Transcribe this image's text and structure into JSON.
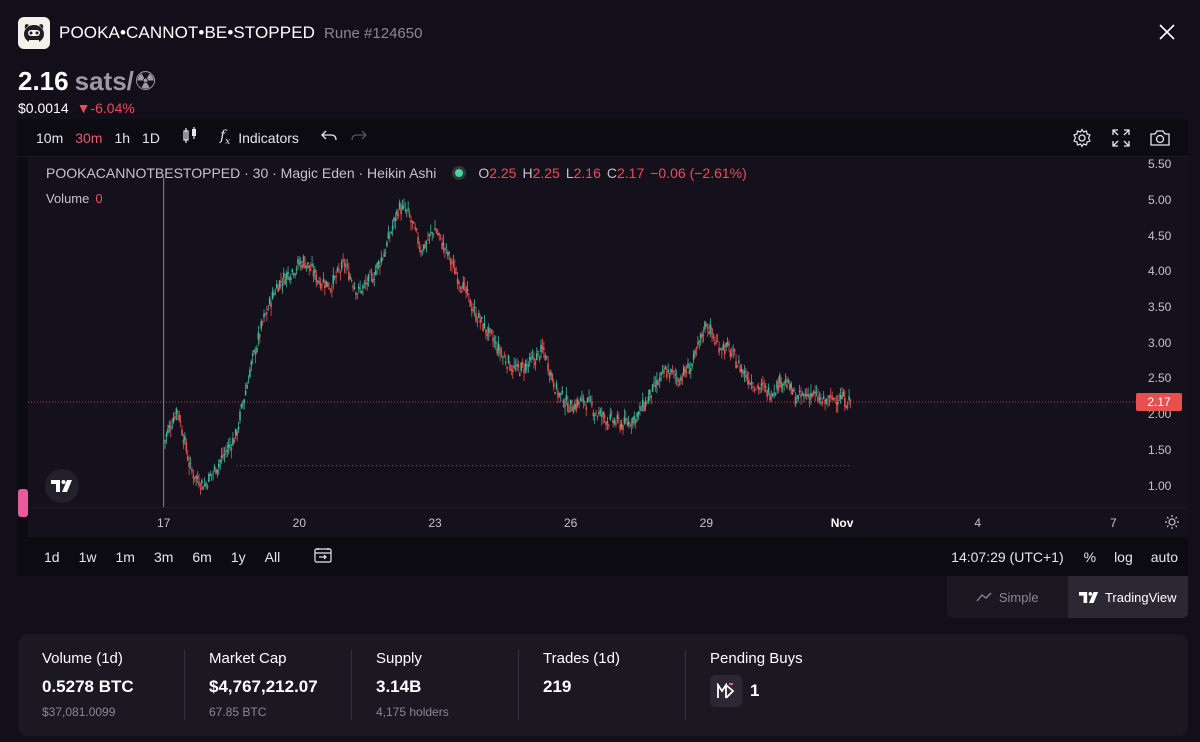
{
  "header": {
    "title": "POOKA•CANNOT•BE•STOPPED",
    "rune_id": "Rune #124650"
  },
  "price": {
    "value": "2.16",
    "unit": "sats/☢",
    "usd": "$0.0014",
    "change": "▼-6.04%"
  },
  "toolbar": {
    "intervals": [
      "10m",
      "30m",
      "1h",
      "1D"
    ],
    "active_interval": "30m",
    "indicators_label": "Indicators"
  },
  "legend": {
    "symbol": "POOKACANNOTBESTOPPED · 30 · Magic Eden · Heikin Ashi",
    "o_label": "O",
    "o_value": "2.25",
    "h_label": "H",
    "h_value": "2.25",
    "l_label": "L",
    "l_value": "2.16",
    "c_label": "C",
    "c_value": "2.17",
    "change": "−0.06 (−2.61%)",
    "volume_label": "Volume",
    "volume_value": "0"
  },
  "chart_data": {
    "type": "candlestick",
    "title": "POOKACANNOTBESTOPPED · 30 · Magic Eden · Heikin Ashi",
    "ylim": [
      0.7,
      5.6
    ],
    "y_ticks": [
      "5.50",
      "5.00",
      "4.50",
      "4.00",
      "3.50",
      "3.00",
      "2.50",
      "2.00",
      "1.50",
      "1.00"
    ],
    "x_ticks": [
      "17",
      "20",
      "23",
      "26",
      "29",
      "Nov",
      "4",
      "7"
    ],
    "current_price": "2.17",
    "support_line": 1.28,
    "x": [
      17.0,
      17.3,
      17.6,
      17.9,
      18.3,
      18.6,
      18.9,
      19.2,
      19.5,
      19.8,
      20.1,
      20.4,
      20.7,
      21.0,
      21.3,
      21.6,
      21.9,
      22.2,
      22.4,
      22.7,
      23.0,
      23.3,
      23.6,
      23.9,
      24.2,
      24.5,
      24.8,
      25.1,
      25.4,
      25.7,
      26.0,
      26.3,
      26.6,
      26.9,
      27.2,
      27.5,
      27.8,
      28.1,
      28.4,
      28.7,
      29.0,
      29.2,
      29.5,
      29.8,
      30.1,
      30.4,
      30.7,
      31.0,
      31.3,
      31.6,
      31.9,
      32.2
    ],
    "values": [
      1.6,
      2.1,
      1.2,
      1.0,
      1.4,
      1.7,
      2.6,
      3.3,
      3.8,
      4.0,
      4.15,
      3.9,
      3.8,
      4.1,
      3.7,
      3.9,
      4.3,
      4.9,
      4.8,
      4.3,
      4.6,
      4.2,
      3.8,
      3.4,
      3.1,
      2.8,
      2.6,
      2.7,
      2.9,
      2.3,
      2.1,
      2.2,
      2.0,
      1.9,
      1.85,
      2.0,
      2.3,
      2.6,
      2.5,
      2.7,
      3.3,
      3.0,
      2.9,
      2.6,
      2.4,
      2.3,
      2.5,
      2.2,
      2.3,
      2.15,
      2.25,
      2.17
    ]
  },
  "time_axis": {
    "labels": [
      "17",
      "20",
      "23",
      "26",
      "29",
      "Nov",
      "4",
      "7"
    ]
  },
  "range_bar": {
    "ranges": [
      "1d",
      "1w",
      "1m",
      "3m",
      "6m",
      "1y",
      "All"
    ],
    "time": "14:07:29 (UTC+1)",
    "percent": "%",
    "log": "log",
    "auto": "auto"
  },
  "view_toggle": {
    "simple": "Simple",
    "tradingview": "TradingView"
  },
  "stats": {
    "volume": {
      "label": "Volume (1d)",
      "value": "0.5278 BTC",
      "sub": "$37,081.0099"
    },
    "market_cap": {
      "label": "Market Cap",
      "value": "$4,767,212.07",
      "sub": "67.85 BTC"
    },
    "supply": {
      "label": "Supply",
      "value": "3.14B",
      "sub": "4,175 holders"
    },
    "trades": {
      "label": "Trades (1d)",
      "value": "219"
    },
    "pending": {
      "label": "Pending Buys",
      "value": "1"
    }
  },
  "colors": {
    "up": "#3fb59a",
    "down": "#e8504f",
    "accent": "#e85a78"
  }
}
